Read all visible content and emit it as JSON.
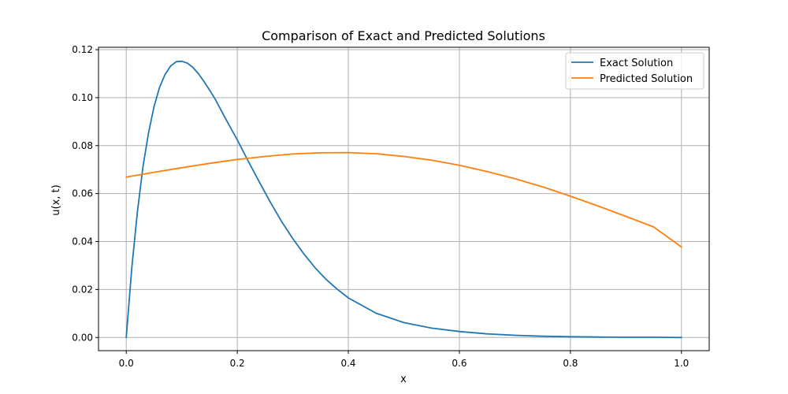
{
  "chart_data": {
    "type": "line",
    "title": "Comparison of Exact and Predicted Solutions",
    "xlabel": "x",
    "ylabel": "u(x, t)",
    "xlim": [
      -0.05,
      1.05
    ],
    "ylim": [
      -0.0055,
      0.121
    ],
    "xticks": [
      0.0,
      0.2,
      0.4,
      0.6,
      0.8,
      1.0
    ],
    "xtick_labels": [
      "0.0",
      "0.2",
      "0.4",
      "0.6",
      "0.8",
      "1.0"
    ],
    "yticks": [
      0.0,
      0.02,
      0.04,
      0.06,
      0.08,
      0.1,
      0.12
    ],
    "ytick_labels": [
      "0.00",
      "0.02",
      "0.04",
      "0.06",
      "0.08",
      "0.10",
      "0.12"
    ],
    "grid": true,
    "legend_position": "top-right",
    "series": [
      {
        "name": "Exact Solution",
        "color": "#1f77b4",
        "x": [
          0.0,
          0.01,
          0.02,
          0.03,
          0.04,
          0.05,
          0.06,
          0.07,
          0.08,
          0.09,
          0.1,
          0.11,
          0.12,
          0.13,
          0.14,
          0.15,
          0.16,
          0.18,
          0.2,
          0.22,
          0.24,
          0.26,
          0.28,
          0.3,
          0.32,
          0.34,
          0.36,
          0.38,
          0.4,
          0.45,
          0.5,
          0.55,
          0.6,
          0.65,
          0.7,
          0.75,
          0.8,
          0.85,
          0.9,
          0.95,
          1.0
        ],
        "y": [
          0.0,
          0.0292,
          0.0522,
          0.0711,
          0.0852,
          0.0963,
          0.1043,
          0.1097,
          0.1132,
          0.115,
          0.1152,
          0.1144,
          0.1126,
          0.11,
          0.1067,
          0.1032,
          0.0994,
          0.0908,
          0.0824,
          0.0734,
          0.0647,
          0.0562,
          0.0483,
          0.0412,
          0.0348,
          0.0291,
          0.0242,
          0.0201,
          0.0165,
          0.0101,
          0.0062,
          0.0039,
          0.0025,
          0.0015,
          0.0009,
          0.0005,
          0.0003,
          0.0002,
          0.0001,
          0.0001,
          0.0
        ]
      },
      {
        "name": "Predicted Solution",
        "color": "#ff7f0e",
        "x": [
          0.0,
          0.05,
          0.1,
          0.15,
          0.2,
          0.25,
          0.3,
          0.35,
          0.4,
          0.45,
          0.5,
          0.55,
          0.6,
          0.65,
          0.7,
          0.75,
          0.8,
          0.85,
          0.9,
          0.95,
          1.0
        ],
        "y": [
          0.0669,
          0.0689,
          0.0708,
          0.0726,
          0.0742,
          0.0755,
          0.0765,
          0.077,
          0.0771,
          0.0766,
          0.0755,
          0.0739,
          0.0718,
          0.0692,
          0.0662,
          0.0628,
          0.0589,
          0.0548,
          0.0505,
          0.0461,
          0.0377
        ]
      }
    ]
  }
}
